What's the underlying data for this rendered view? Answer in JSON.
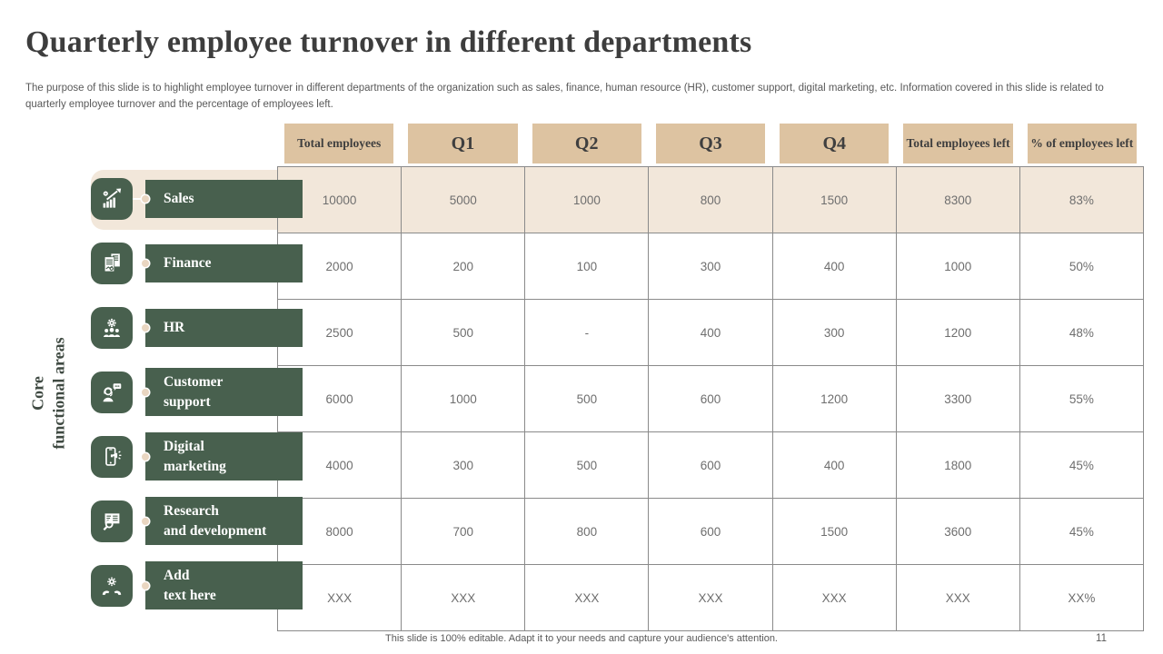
{
  "title": "Quarterly employee turnover in different departments",
  "subtitle": "The purpose of this slide is to highlight employee turnover in different departments of the organization such as sales, finance, human resource (HR), customer support, digital marketing, etc. Information covered in this slide is related to quarterly employee turnover and the percentage of employees left.",
  "sidebar": {
    "group_label": "Core\nfunctional areas",
    "items": [
      {
        "label": "Sales",
        "icon": "growth-chart-icon"
      },
      {
        "label": "Finance",
        "icon": "finance-report-icon"
      },
      {
        "label": "HR",
        "icon": "hr-team-gear-icon"
      },
      {
        "label": "Customer\nsupport",
        "icon": "customer-support-headset-icon"
      },
      {
        "label": "Digital\nmarketing",
        "icon": "digital-marketing-phone-icon"
      },
      {
        "label": "Research\nand development",
        "icon": "research-presentation-magnifier-icon"
      },
      {
        "label": "Add\ntext here",
        "icon": "hands-holding-gear-icon"
      }
    ]
  },
  "table": {
    "columns": [
      "Total employees",
      "Q1",
      "Q2",
      "Q3",
      "Q4",
      "Total employees left",
      "% of employees left"
    ],
    "rows": [
      {
        "department": "Sales",
        "highlighted": true,
        "values": [
          "10000",
          "5000",
          "1000",
          "800",
          "1500",
          "8300",
          "83%"
        ]
      },
      {
        "department": "Finance",
        "highlighted": false,
        "values": [
          "2000",
          "200",
          "100",
          "300",
          "400",
          "1000",
          "50%"
        ]
      },
      {
        "department": "HR",
        "highlighted": false,
        "values": [
          "2500",
          "500",
          "-",
          "400",
          "300",
          "1200",
          "48%"
        ]
      },
      {
        "department": "Customer support",
        "highlighted": false,
        "values": [
          "6000",
          "1000",
          "500",
          "600",
          "1200",
          "3300",
          "55%"
        ]
      },
      {
        "department": "Digital marketing",
        "highlighted": false,
        "values": [
          "4000",
          "300",
          "500",
          "600",
          "400",
          "1800",
          "45%"
        ]
      },
      {
        "department": "Research and development",
        "highlighted": false,
        "values": [
          "8000",
          "700",
          "800",
          "600",
          "1500",
          "3600",
          "45%"
        ]
      },
      {
        "department": "Add text here",
        "highlighted": false,
        "values": [
          "XXX",
          "XXX",
          "XXX",
          "XXX",
          "XXX",
          "XXX",
          "XX%"
        ]
      }
    ]
  },
  "footer": {
    "note": "This slide is 100% editable. Adapt it to your needs and capture your audience's attention.",
    "page_number": "11"
  },
  "colors": {
    "accent_green": "#48604e",
    "header_beige": "#ddc3a1",
    "highlight_beige": "#f2e7da",
    "border_gray": "#8a8a8a"
  }
}
